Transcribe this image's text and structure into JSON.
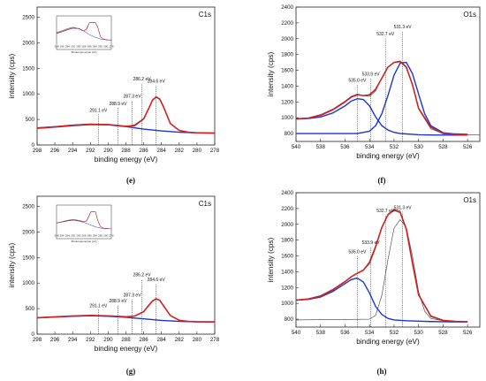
{
  "chart_data": [
    {
      "panel": "(e)",
      "type": "line",
      "title": "C1s",
      "xlabel": "binding energy (eV)",
      "ylabel": "intensity (cps)",
      "xlim": [
        298,
        278
      ],
      "ylim": [
        0,
        2700
      ],
      "x_ticks": [
        "298",
        "296",
        "294",
        "292",
        "290",
        "288",
        "286",
        "284",
        "282",
        "280",
        "278"
      ],
      "y_ticks": [
        "0",
        "500",
        "1000",
        "1500",
        "2000",
        "2500"
      ],
      "annotations": [
        {
          "x": 291.1,
          "label": "291.1 eV",
          "ytop": 600
        },
        {
          "x": 288.9,
          "label": "288.9 eV",
          "ytop": 730
        },
        {
          "x": 287.3,
          "label": "287.3 eV",
          "ytop": 870
        },
        {
          "x": 286.2,
          "label": "286.2 eV",
          "ytop": 1210
        },
        {
          "x": 284.6,
          "label": "284.6 eV",
          "ytop": 1170
        }
      ],
      "inset": {
        "xlabel": "Bindungsenergie [eV]",
        "ticks": [
          "298",
          "296",
          "294",
          "292",
          "290",
          "288",
          "286",
          "284",
          "282",
          "280",
          "278"
        ]
      },
      "series": [
        {
          "color": "#3a3a3a",
          "x": [
            298,
            296,
            294,
            292,
            290,
            288,
            287,
            286,
            285.5,
            285,
            284.6,
            284.2,
            283.8,
            283,
            282,
            281,
            280,
            279,
            278
          ],
          "y": [
            340,
            365,
            395,
            415,
            395,
            360,
            400,
            520,
            700,
            870,
            930,
            890,
            750,
            420,
            280,
            250,
            240,
            235,
            235
          ]
        },
        {
          "color": "#1a35d6",
          "x": [
            298,
            296,
            294,
            292,
            290,
            288,
            286,
            284,
            282,
            280,
            278
          ],
          "y": [
            325,
            350,
            378,
            400,
            395,
            360,
            310,
            275,
            250,
            238,
            232
          ]
        },
        {
          "color": "#d42020",
          "x": [
            298,
            296,
            294,
            292,
            290,
            288,
            287,
            286,
            285.5,
            285,
            284.6,
            284.2,
            283.8,
            283,
            282,
            281,
            280,
            278
          ],
          "y": [
            330,
            355,
            385,
            405,
            400,
            365,
            380,
            510,
            690,
            880,
            940,
            900,
            760,
            420,
            285,
            250,
            238,
            232
          ]
        }
      ]
    },
    {
      "panel": "(f)",
      "type": "line",
      "title": "O1s",
      "xlabel": "binding energy (eV)",
      "ylabel": "intensity (cps)",
      "xlim": [
        540,
        525
      ],
      "ylim": [
        700,
        2400
      ],
      "x_ticks": [
        "540",
        "538",
        "536",
        "534",
        "532",
        "530",
        "528",
        "526"
      ],
      "y_ticks": [
        "800",
        "1000",
        "1200",
        "1400",
        "1600",
        "1800",
        "2000",
        "2200",
        "2400"
      ],
      "annotations": [
        {
          "x": 535.0,
          "label": "535.0 eV",
          "ytop": 1420
        },
        {
          "x": 533.9,
          "label": "533.9 eV",
          "ytop": 1500
        },
        {
          "x": 532.7,
          "label": "532.7 eV",
          "ytop": 2010
        },
        {
          "x": 531.3,
          "label": "531.3 eV",
          "ytop": 2100
        }
      ],
      "series": [
        {
          "color": "#3a3a3a",
          "x": [
            540,
            539,
            538,
            537,
            536,
            535.5,
            535,
            534.5,
            534,
            533.5,
            533,
            532.5,
            532,
            531.5,
            531,
            530.5,
            530,
            529,
            528,
            527,
            526,
            525
          ],
          "y": [
            990,
            1000,
            1040,
            1110,
            1210,
            1270,
            1300,
            1280,
            1270,
            1340,
            1500,
            1640,
            1700,
            1720,
            1650,
            1420,
            1110,
            860,
            800,
            790,
            785,
            780
          ]
        },
        {
          "color": "#1a35d6",
          "x": [
            540,
            539,
            538,
            537,
            536,
            535.5,
            535,
            534.5,
            534,
            533.5,
            533,
            532.5,
            532,
            531.5,
            531,
            530.5,
            530,
            529,
            528,
            527,
            526
          ],
          "y": [
            985,
            990,
            1010,
            1060,
            1150,
            1210,
            1240,
            1230,
            1150,
            1010,
            900,
            845,
            815,
            800,
            795,
            790,
            785,
            782,
            780,
            780,
            780
          ]
        },
        {
          "color": "#1a35d6",
          "x": [
            540,
            535,
            534,
            533.5,
            533,
            532.5,
            532,
            531.5,
            531,
            530.5,
            530,
            529.5,
            529,
            528,
            527,
            526
          ],
          "y": [
            800,
            800,
            830,
            900,
            1050,
            1280,
            1540,
            1690,
            1700,
            1560,
            1300,
            1050,
            900,
            810,
            795,
            790
          ]
        },
        {
          "color": "#d42020",
          "x": [
            540,
            539,
            538,
            537,
            536,
            535.5,
            535,
            534.5,
            534,
            533.5,
            533,
            532.5,
            532,
            531.5,
            531,
            530.5,
            530,
            529,
            528,
            527,
            526
          ],
          "y": [
            985,
            995,
            1030,
            1100,
            1200,
            1260,
            1290,
            1280,
            1290,
            1360,
            1500,
            1640,
            1700,
            1710,
            1640,
            1420,
            1120,
            880,
            800,
            790,
            785
          ]
        }
      ]
    },
    {
      "panel": "(g)",
      "type": "line",
      "title": "C1s",
      "xlabel": "binding energy (eV)",
      "ylabel": "intensity (cps)",
      "xlim": [
        298,
        278
      ],
      "ylim": [
        0,
        2700
      ],
      "x_ticks": [
        "298",
        "296",
        "294",
        "292",
        "290",
        "288",
        "286",
        "284",
        "282",
        "280",
        "278"
      ],
      "y_ticks": [
        "0",
        "500",
        "1000",
        "1500",
        "2000",
        "2500"
      ],
      "annotations": [
        {
          "x": 291.1,
          "label": "291.1 eV",
          "ytop": 480
        },
        {
          "x": 288.9,
          "label": "288.9 eV",
          "ytop": 570
        },
        {
          "x": 287.3,
          "label": "287.3 eV",
          "ytop": 680
        },
        {
          "x": 286.2,
          "label": "286.2 eV",
          "ytop": 1080
        },
        {
          "x": 284.6,
          "label": "284.6 eV",
          "ytop": 990
        }
      ],
      "inset": {
        "xlabel": "Bindungsenergie [eV]",
        "ticks": [
          "298",
          "296",
          "294",
          "292",
          "290",
          "288",
          "286",
          "284",
          "282",
          "280",
          "278"
        ]
      },
      "series": [
        {
          "color": "#3a3a3a",
          "x": [
            298,
            296,
            294,
            292,
            290,
            288,
            287,
            286,
            285.5,
            285,
            284.6,
            284.2,
            283.8,
            283,
            282,
            281,
            280,
            279,
            278
          ],
          "y": [
            320,
            340,
            360,
            370,
            360,
            340,
            350,
            430,
            540,
            640,
            680,
            660,
            560,
            360,
            270,
            250,
            245,
            240,
            240
          ]
        },
        {
          "color": "#1a35d6",
          "x": [
            298,
            296,
            294,
            292,
            290,
            288,
            286,
            284,
            282,
            280,
            278
          ],
          "y": [
            320,
            335,
            350,
            360,
            350,
            330,
            300,
            270,
            250,
            242,
            240
          ]
        },
        {
          "color": "#d42020",
          "x": [
            298,
            296,
            294,
            292,
            290,
            288,
            287,
            286,
            285.5,
            285,
            284.6,
            284.2,
            283.8,
            283,
            282,
            281,
            280,
            278
          ],
          "y": [
            322,
            338,
            356,
            366,
            358,
            340,
            355,
            440,
            550,
            650,
            690,
            665,
            565,
            365,
            272,
            250,
            243,
            240
          ]
        }
      ]
    },
    {
      "panel": "(h)",
      "type": "line",
      "title": "O1s",
      "xlabel": "binding energy (eV)",
      "ylabel": "intensity (cps)",
      "xlim": [
        540,
        525
      ],
      "ylim": [
        700,
        2400
      ],
      "x_ticks": [
        "540",
        "538",
        "536",
        "534",
        "532",
        "530",
        "528",
        "526"
      ],
      "y_ticks": [
        "800",
        "1000",
        "1200",
        "1400",
        "1600",
        "1800",
        "2000",
        "2200",
        "2400"
      ],
      "annotations": [
        {
          "x": 535.0,
          "label": "535.0 eV",
          "ytop": 1600
        },
        {
          "x": 533.9,
          "label": "533.9 eV",
          "ytop": 1720
        },
        {
          "x": 532.7,
          "label": "532.7 eV",
          "ytop": 2120
        },
        {
          "x": 531.3,
          "label": "531.3 eV",
          "ytop": 2160
        }
      ],
      "series": [
        {
          "color": "#3a3a3a",
          "x": [
            540,
            539,
            538,
            537,
            536,
            535.5,
            535,
            534.5,
            534,
            533.5,
            533,
            532.5,
            532,
            531.5,
            531,
            530.5,
            530,
            529,
            528,
            527,
            526
          ],
          "y": [
            1045,
            1060,
            1100,
            1180,
            1280,
            1340,
            1380,
            1420,
            1500,
            1700,
            1950,
            2130,
            2190,
            2170,
            1950,
            1500,
            1100,
            830,
            780,
            770,
            765
          ]
        },
        {
          "color": "#1a35d6",
          "x": [
            540,
            539,
            538,
            537,
            536,
            535.5,
            535,
            534.5,
            534,
            533.5,
            533,
            532.5,
            532,
            531,
            530,
            529,
            528,
            527,
            526
          ],
          "y": [
            1040,
            1050,
            1080,
            1150,
            1250,
            1300,
            1320,
            1270,
            1130,
            960,
            860,
            810,
            790,
            780,
            775,
            770,
            768,
            765,
            765
          ]
        },
        {
          "color": "#3a3a3a",
          "x": [
            540,
            534,
            533.5,
            533,
            532.5,
            532,
            531.5,
            531,
            530.5,
            530,
            529.5,
            529,
            528,
            527,
            526
          ],
          "y": [
            790,
            800,
            850,
            1100,
            1550,
            1950,
            2060,
            1960,
            1600,
            1150,
            900,
            810,
            780,
            775,
            770
          ]
        },
        {
          "color": "#d42020",
          "x": [
            540,
            539,
            538,
            537,
            536,
            535.5,
            535,
            534.5,
            534,
            533.5,
            533,
            532.5,
            532,
            531.5,
            531,
            530.5,
            530,
            529,
            528,
            527,
            526
          ],
          "y": [
            1040,
            1055,
            1090,
            1170,
            1275,
            1335,
            1380,
            1420,
            1520,
            1720,
            1960,
            2120,
            2180,
            2150,
            1940,
            1510,
            1110,
            840,
            785,
            772,
            768
          ]
        }
      ]
    }
  ]
}
